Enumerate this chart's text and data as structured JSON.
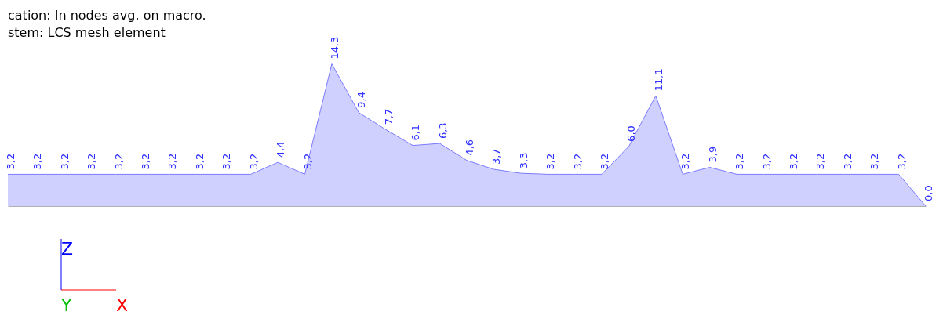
{
  "chart_data": {
    "type": "area",
    "annotations": [
      "cation: In nodes avg. on macro.",
      "stem: LCS mesh element",
      "Z",
      "Y",
      "X"
    ],
    "categories": [
      null,
      null,
      null,
      null,
      null,
      null,
      null,
      null,
      null,
      null,
      null,
      null,
      null,
      null,
      null,
      null,
      null,
      null,
      null,
      null,
      null,
      null,
      null,
      null,
      null,
      null,
      null,
      null,
      null,
      null,
      null,
      null,
      null,
      null,
      null
    ],
    "series": [
      {
        "color": "#bcbcff",
        "values": [
          3.2,
          3.2,
          3.2,
          3.2,
          3.2,
          3.2,
          3.2,
          3.2,
          3.2,
          3.2,
          4.4,
          3.2,
          14.3,
          9.4,
          7.7,
          6.1,
          6.3,
          4.6,
          3.7,
          3.3,
          3.2,
          3.2,
          3.2,
          6.0,
          11.1,
          3.2,
          3.9,
          3.2,
          3.2,
          3.2,
          3.2,
          3.2,
          3.2,
          3.2,
          0.0
        ],
        "value_labels": [
          "3,2",
          "3,2",
          "3,2",
          "3,2",
          "3,2",
          "3,2",
          "3,2",
          "3,2",
          "3,2",
          "3,2",
          "4,4",
          "3,2",
          "14,3",
          "9,4",
          "7,7",
          "6,1",
          "6,3",
          "4,6",
          "3,7",
          "3,3",
          "3,2",
          "3,2",
          "3,2",
          "6,0",
          "11,1",
          "3,2",
          "3,9",
          "3,2",
          "3,2",
          "3,2",
          "3,2",
          "3,2",
          "3,2",
          "3,2",
          "0,0"
        ]
      }
    ],
    "tick_labels": false,
    "grid": false
  }
}
